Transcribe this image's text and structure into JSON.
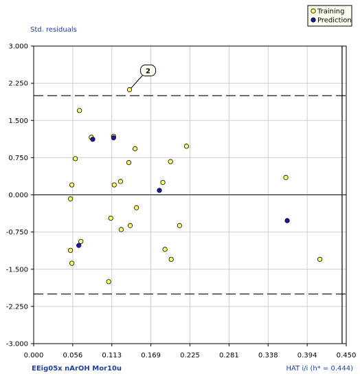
{
  "chart_data": {
    "type": "scatter",
    "ylabel": "Std. residuals",
    "xlabel_left": "EEig05x nArOH Mor10u",
    "xlabel_right": "HAT i/i (h* = 0.444)",
    "xlim": [
      0.0,
      0.45
    ],
    "ylim": [
      -3.0,
      3.0
    ],
    "x_ticks": [
      "0.000",
      "0.056",
      "0.113",
      "0.169",
      "0.225",
      "0.281",
      "0.338",
      "0.394",
      "0.450"
    ],
    "y_ticks": [
      "3.000",
      "2.250",
      "1.500",
      "0.750",
      "0.000",
      "-0.750",
      "-1.500",
      "-2.250",
      "-3.000"
    ],
    "grid": true,
    "reference_lines": {
      "y_dashed": [
        2.0,
        -2.0
      ],
      "y_solid": [
        0.0
      ],
      "x_solid": [
        0.444
      ]
    },
    "legend_position": "top-right",
    "colors": {
      "training": "#ffff66",
      "prediction": "#1a1aa6"
    },
    "series": [
      {
        "name": "Training",
        "points": [
          [
            0.138,
            2.12
          ],
          [
            0.066,
            1.7
          ],
          [
            0.083,
            1.16
          ],
          [
            0.115,
            1.18
          ],
          [
            0.06,
            0.73
          ],
          [
            0.146,
            0.93
          ],
          [
            0.22,
            0.98
          ],
          [
            0.137,
            0.65
          ],
          [
            0.197,
            0.67
          ],
          [
            0.125,
            0.27
          ],
          [
            0.186,
            0.25
          ],
          [
            0.116,
            0.2
          ],
          [
            0.055,
            0.2
          ],
          [
            0.363,
            0.35
          ],
          [
            0.053,
            -0.08
          ],
          [
            0.148,
            -0.26
          ],
          [
            0.111,
            -0.47
          ],
          [
            0.139,
            -0.62
          ],
          [
            0.21,
            -0.62
          ],
          [
            0.126,
            -0.7
          ],
          [
            0.068,
            -0.94
          ],
          [
            0.053,
            -1.12
          ],
          [
            0.189,
            -1.1
          ],
          [
            0.055,
            -1.38
          ],
          [
            0.198,
            -1.3
          ],
          [
            0.412,
            -1.3
          ],
          [
            0.108,
            -1.75
          ]
        ]
      },
      {
        "name": "Prediction",
        "points": [
          [
            0.085,
            1.12
          ],
          [
            0.115,
            1.15
          ],
          [
            0.181,
            0.09
          ],
          [
            0.365,
            -0.52
          ],
          [
            0.065,
            -1.02
          ]
        ]
      }
    ],
    "annotations": [
      {
        "text": "2",
        "x": 0.138,
        "y": 2.12
      }
    ]
  }
}
